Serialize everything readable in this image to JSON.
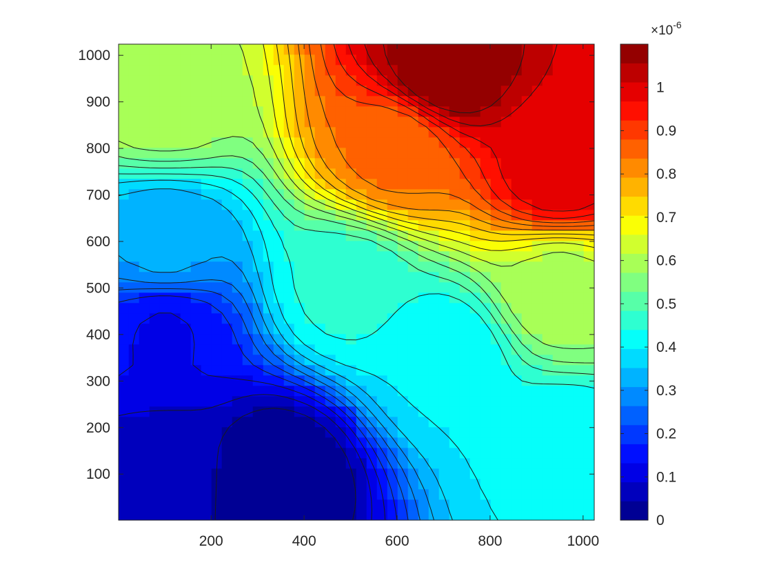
{
  "chart_data": {
    "type": "contourf",
    "title": "",
    "xlabel": "",
    "ylabel": "",
    "colormap": "jet",
    "xlim": [
      1,
      1024
    ],
    "ylim": [
      1,
      1024
    ],
    "xticks": [
      200,
      400,
      600,
      800,
      1000
    ],
    "xtick_labels": [
      "200",
      "400",
      "600",
      "800",
      "1000"
    ],
    "yticks": [
      100,
      200,
      300,
      400,
      500,
      600,
      700,
      800,
      900,
      1000
    ],
    "ytick_labels": [
      "100",
      "200",
      "300",
      "400",
      "500",
      "600",
      "700",
      "800",
      "900",
      "1000"
    ],
    "colorbar": {
      "clim": [
        0,
        1.1e-06
      ],
      "ticks": [
        0,
        0.1,
        0.2,
        0.3,
        0.4,
        0.5,
        0.6,
        0.7,
        0.8,
        0.9,
        1.0
      ],
      "tick_labels": [
        "0",
        "0.1",
        "0.2",
        "0.3",
        "0.4",
        "0.5",
        "0.6",
        "0.7",
        "0.8",
        "0.9",
        "1"
      ],
      "exponent_base": "×10",
      "exponent_power": "-6"
    },
    "contour_levels": 25,
    "field_description_points": [
      {
        "x": 350,
        "y": 100,
        "value": 0.0
      },
      {
        "x": 100,
        "y": 100,
        "value": 0.06
      },
      {
        "x": 100,
        "y": 400,
        "value": 0.13
      },
      {
        "x": 100,
        "y": 600,
        "value": 0.32
      },
      {
        "x": 100,
        "y": 900,
        "value": 0.6
      },
      {
        "x": 500,
        "y": 500,
        "value": 0.45
      },
      {
        "x": 700,
        "y": 350,
        "value": 0.4
      },
      {
        "x": 950,
        "y": 150,
        "value": 0.4
      },
      {
        "x": 950,
        "y": 500,
        "value": 0.6
      },
      {
        "x": 600,
        "y": 800,
        "value": 0.85
      },
      {
        "x": 700,
        "y": 970,
        "value": 1.1
      },
      {
        "x": 950,
        "y": 750,
        "value": 1.0
      }
    ]
  }
}
